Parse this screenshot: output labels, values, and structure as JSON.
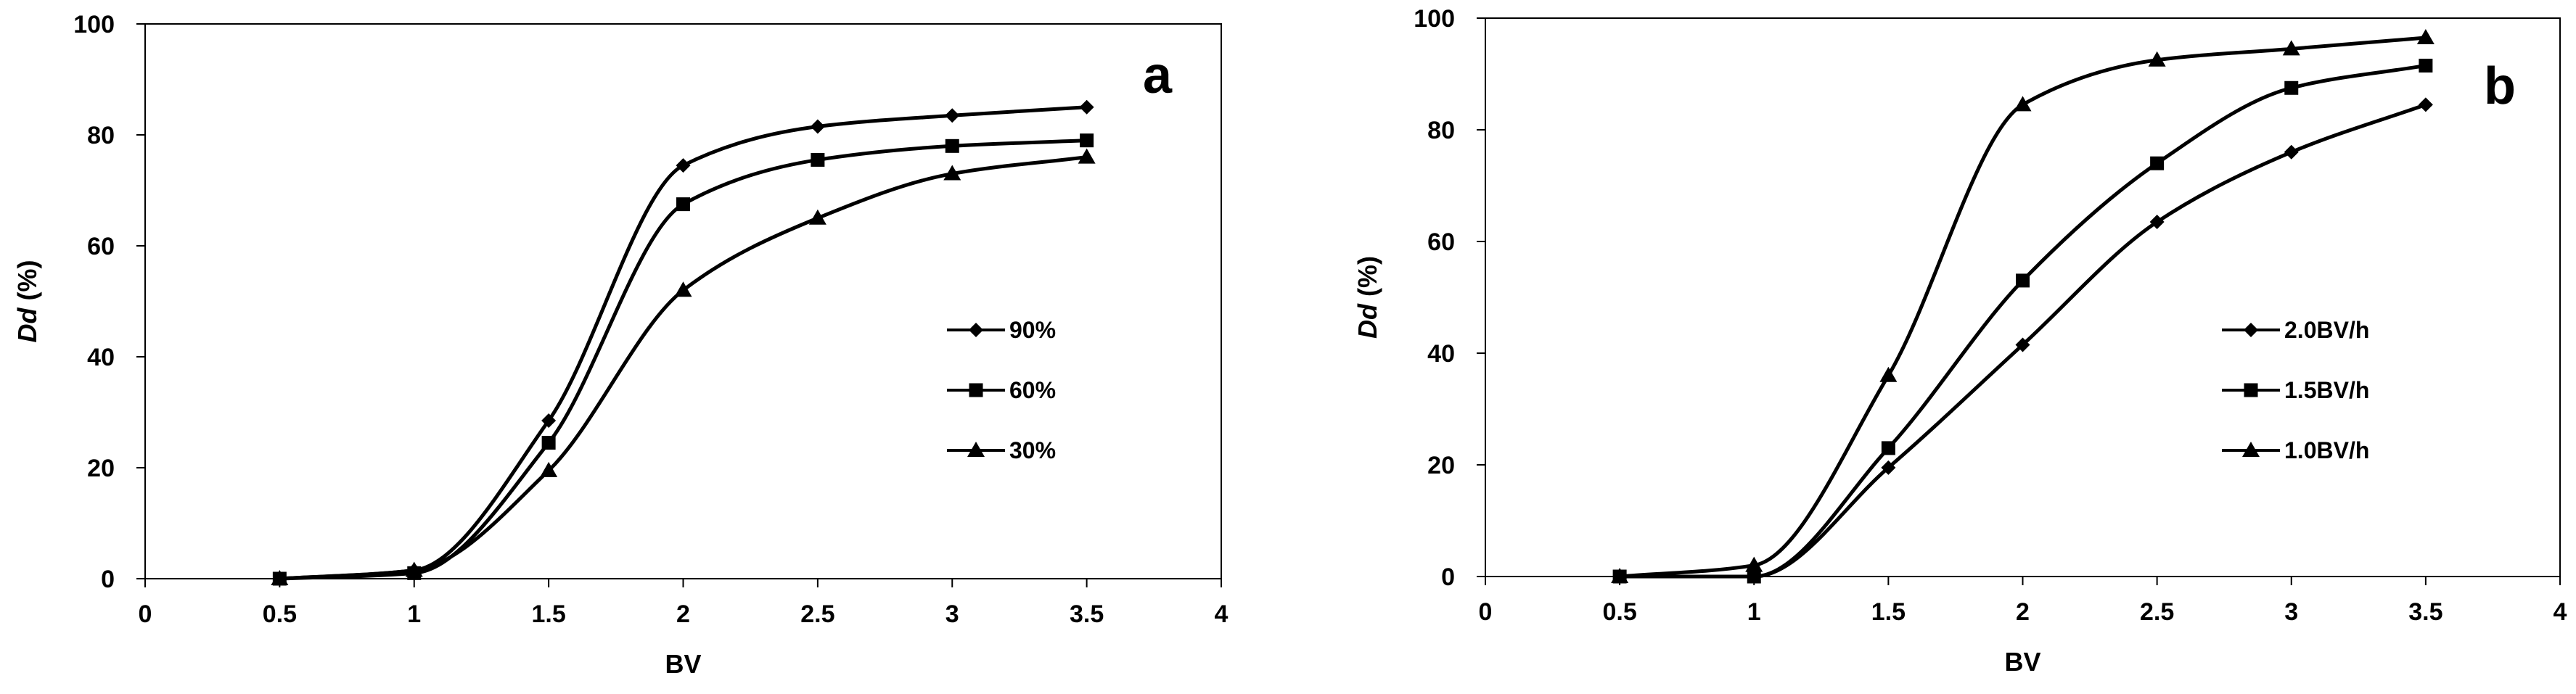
{
  "chart_data": [
    {
      "type": "line",
      "panel_label": "a",
      "xlabel": "BV",
      "ylabel_italic": "Dd",
      "ylabel_rest": " (%)",
      "xlim": [
        0,
        4
      ],
      "ylim": [
        0,
        100
      ],
      "xticks": [
        0,
        0.5,
        1,
        1.5,
        2,
        2.5,
        3,
        3.5,
        4
      ],
      "xtick_labels": [
        "0",
        "0.5",
        "1",
        "1.5",
        "2",
        "2.5",
        "3",
        "3.5",
        "4"
      ],
      "yticks": [
        0,
        20,
        40,
        60,
        80,
        100
      ],
      "ytick_labels": [
        "0",
        "20",
        "40",
        "60",
        "80",
        "100"
      ],
      "grid": false,
      "legend_position": "right",
      "series": [
        {
          "name": "90%",
          "marker": "diamond",
          "x": [
            0.5,
            1,
            1.5,
            2,
            2.5,
            3,
            3.5
          ],
          "y": [
            0,
            1.5,
            28.5,
            74.5,
            81.5,
            83.5,
            85
          ]
        },
        {
          "name": "60%",
          "marker": "square",
          "x": [
            0.5,
            1,
            1.5,
            2,
            2.5,
            3,
            3.5
          ],
          "y": [
            0,
            1,
            24.5,
            67.5,
            75.5,
            78,
            79
          ]
        },
        {
          "name": "30%",
          "marker": "triangle",
          "x": [
            0.5,
            1,
            1.5,
            2,
            2.5,
            3,
            3.5
          ],
          "y": [
            0,
            1.5,
            19.5,
            52,
            65,
            73,
            76
          ]
        }
      ]
    },
    {
      "type": "line",
      "panel_label": "b",
      "xlabel": "BV",
      "ylabel_italic": "Dd",
      "ylabel_rest": " (%)",
      "xlim": [
        0,
        4
      ],
      "ylim": [
        0,
        100
      ],
      "xticks": [
        0,
        0.5,
        1,
        1.5,
        2,
        2.5,
        3,
        3.5,
        4
      ],
      "xtick_labels": [
        "0",
        "0.5",
        "1",
        "1.5",
        "2",
        "2.5",
        "3",
        "3.5",
        "4"
      ],
      "yticks": [
        0,
        20,
        40,
        60,
        80,
        100
      ],
      "ytick_labels": [
        "0",
        "20",
        "40",
        "60",
        "80",
        "100"
      ],
      "grid": false,
      "legend_position": "right",
      "series": [
        {
          "name": "2.0BV/h",
          "marker": "diamond",
          "x": [
            0.5,
            1,
            1.5,
            2,
            2.5,
            3,
            3.5
          ],
          "y": [
            0,
            0,
            19.5,
            41.5,
            63.5,
            76,
            84.5
          ]
        },
        {
          "name": "1.5BV/h",
          "marker": "square",
          "x": [
            0.5,
            1,
            1.5,
            2,
            2.5,
            3,
            3.5
          ],
          "y": [
            0,
            0,
            23,
            53,
            74,
            87.5,
            91.5
          ]
        },
        {
          "name": "1.0BV/h",
          "marker": "triangle",
          "x": [
            0.5,
            1,
            1.5,
            2,
            2.5,
            3,
            3.5
          ],
          "y": [
            0,
            2,
            36,
            84.5,
            92.5,
            94.5,
            96.5
          ]
        }
      ]
    }
  ]
}
